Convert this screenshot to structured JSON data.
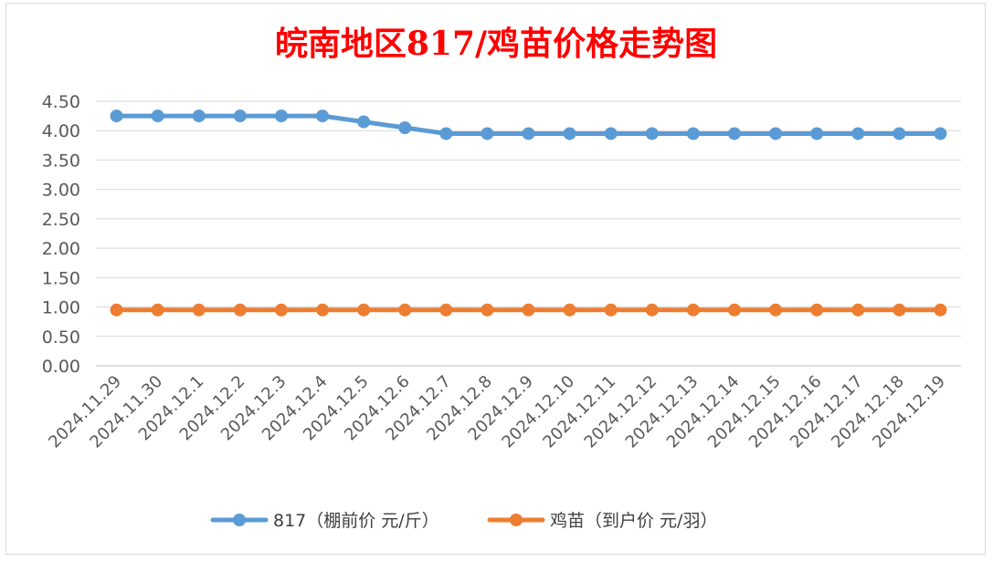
{
  "chart_data": {
    "type": "line",
    "title": "皖南地区817/鸡苗价格走势图",
    "title_color": "#ff0000",
    "xlabel": "",
    "ylabel": "",
    "categories": [
      "2024.11.29",
      "2024.11.30",
      "2024.12.1",
      "2024.12.2",
      "2024.12.3",
      "2024.12.4",
      "2024.12.5",
      "2024.12.6",
      "2024.12.7",
      "2024.12.8",
      "2024.12.9",
      "2024.12.10",
      "2024.12.11",
      "2024.12.12",
      "2024.12.13",
      "2024.12.14",
      "2024.12.15",
      "2024.12.16",
      "2024.12.17",
      "2024.12.18",
      "2024.12.19"
    ],
    "ylim": [
      0,
      4.5
    ],
    "yticks": [
      "0.00",
      "0.50",
      "1.00",
      "1.50",
      "2.00",
      "2.50",
      "3.00",
      "3.50",
      "4.00",
      "4.50"
    ],
    "grid": true,
    "legend_position": "bottom",
    "series": [
      {
        "name": "817（棚前价 元/斤）",
        "color": "#5b9bd5",
        "values": [
          4.25,
          4.25,
          4.25,
          4.25,
          4.25,
          4.25,
          4.15,
          4.05,
          3.95,
          3.95,
          3.95,
          3.95,
          3.95,
          3.95,
          3.95,
          3.95,
          3.95,
          3.95,
          3.95,
          3.95,
          3.95
        ]
      },
      {
        "name": "鸡苗（到户价 元/羽）",
        "color": "#ed7d31",
        "values": [
          0.95,
          0.95,
          0.95,
          0.95,
          0.95,
          0.95,
          0.95,
          0.95,
          0.95,
          0.95,
          0.95,
          0.95,
          0.95,
          0.95,
          0.95,
          0.95,
          0.95,
          0.95,
          0.95,
          0.95,
          0.95
        ]
      }
    ]
  }
}
